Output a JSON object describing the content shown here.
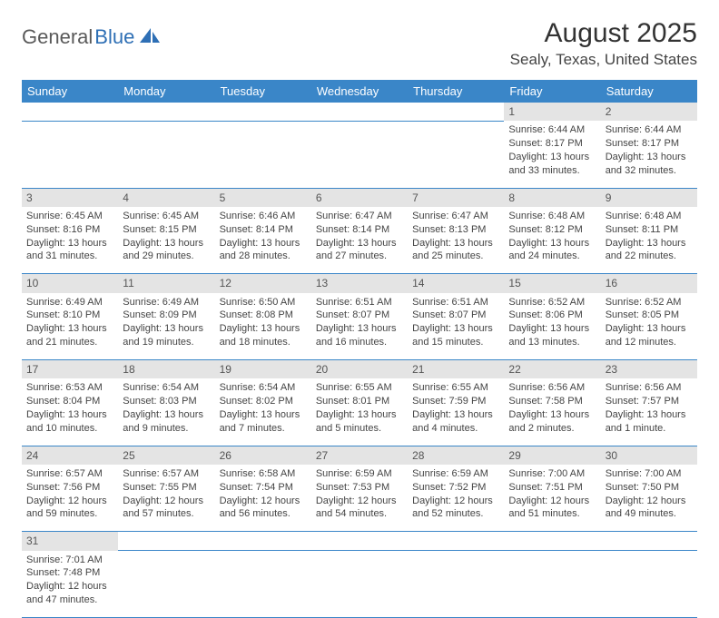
{
  "logo": {
    "part1": "General",
    "part2": "Blue"
  },
  "title": "August 2025",
  "location": "Sealy, Texas, United States",
  "colors": {
    "header_bg": "#3a86c8",
    "header_text": "#ffffff",
    "daynum_bg": "#e4e4e4",
    "row_divider": "#3a86c8",
    "text": "#444444",
    "logo_gray": "#5a5a5a",
    "logo_blue": "#2e6fb5"
  },
  "weekdays": [
    "Sunday",
    "Monday",
    "Tuesday",
    "Wednesday",
    "Thursday",
    "Friday",
    "Saturday"
  ],
  "weeks": [
    {
      "nums": [
        "",
        "",
        "",
        "",
        "",
        "1",
        "2"
      ],
      "cells": [
        null,
        null,
        null,
        null,
        null,
        {
          "sunrise": "Sunrise: 6:44 AM",
          "sunset": "Sunset: 8:17 PM",
          "day1": "Daylight: 13 hours",
          "day2": "and 33 minutes."
        },
        {
          "sunrise": "Sunrise: 6:44 AM",
          "sunset": "Sunset: 8:17 PM",
          "day1": "Daylight: 13 hours",
          "day2": "and 32 minutes."
        }
      ]
    },
    {
      "nums": [
        "3",
        "4",
        "5",
        "6",
        "7",
        "8",
        "9"
      ],
      "cells": [
        {
          "sunrise": "Sunrise: 6:45 AM",
          "sunset": "Sunset: 8:16 PM",
          "day1": "Daylight: 13 hours",
          "day2": "and 31 minutes."
        },
        {
          "sunrise": "Sunrise: 6:45 AM",
          "sunset": "Sunset: 8:15 PM",
          "day1": "Daylight: 13 hours",
          "day2": "and 29 minutes."
        },
        {
          "sunrise": "Sunrise: 6:46 AM",
          "sunset": "Sunset: 8:14 PM",
          "day1": "Daylight: 13 hours",
          "day2": "and 28 minutes."
        },
        {
          "sunrise": "Sunrise: 6:47 AM",
          "sunset": "Sunset: 8:14 PM",
          "day1": "Daylight: 13 hours",
          "day2": "and 27 minutes."
        },
        {
          "sunrise": "Sunrise: 6:47 AM",
          "sunset": "Sunset: 8:13 PM",
          "day1": "Daylight: 13 hours",
          "day2": "and 25 minutes."
        },
        {
          "sunrise": "Sunrise: 6:48 AM",
          "sunset": "Sunset: 8:12 PM",
          "day1": "Daylight: 13 hours",
          "day2": "and 24 minutes."
        },
        {
          "sunrise": "Sunrise: 6:48 AM",
          "sunset": "Sunset: 8:11 PM",
          "day1": "Daylight: 13 hours",
          "day2": "and 22 minutes."
        }
      ]
    },
    {
      "nums": [
        "10",
        "11",
        "12",
        "13",
        "14",
        "15",
        "16"
      ],
      "cells": [
        {
          "sunrise": "Sunrise: 6:49 AM",
          "sunset": "Sunset: 8:10 PM",
          "day1": "Daylight: 13 hours",
          "day2": "and 21 minutes."
        },
        {
          "sunrise": "Sunrise: 6:49 AM",
          "sunset": "Sunset: 8:09 PM",
          "day1": "Daylight: 13 hours",
          "day2": "and 19 minutes."
        },
        {
          "sunrise": "Sunrise: 6:50 AM",
          "sunset": "Sunset: 8:08 PM",
          "day1": "Daylight: 13 hours",
          "day2": "and 18 minutes."
        },
        {
          "sunrise": "Sunrise: 6:51 AM",
          "sunset": "Sunset: 8:07 PM",
          "day1": "Daylight: 13 hours",
          "day2": "and 16 minutes."
        },
        {
          "sunrise": "Sunrise: 6:51 AM",
          "sunset": "Sunset: 8:07 PM",
          "day1": "Daylight: 13 hours",
          "day2": "and 15 minutes."
        },
        {
          "sunrise": "Sunrise: 6:52 AM",
          "sunset": "Sunset: 8:06 PM",
          "day1": "Daylight: 13 hours",
          "day2": "and 13 minutes."
        },
        {
          "sunrise": "Sunrise: 6:52 AM",
          "sunset": "Sunset: 8:05 PM",
          "day1": "Daylight: 13 hours",
          "day2": "and 12 minutes."
        }
      ]
    },
    {
      "nums": [
        "17",
        "18",
        "19",
        "20",
        "21",
        "22",
        "23"
      ],
      "cells": [
        {
          "sunrise": "Sunrise: 6:53 AM",
          "sunset": "Sunset: 8:04 PM",
          "day1": "Daylight: 13 hours",
          "day2": "and 10 minutes."
        },
        {
          "sunrise": "Sunrise: 6:54 AM",
          "sunset": "Sunset: 8:03 PM",
          "day1": "Daylight: 13 hours",
          "day2": "and 9 minutes."
        },
        {
          "sunrise": "Sunrise: 6:54 AM",
          "sunset": "Sunset: 8:02 PM",
          "day1": "Daylight: 13 hours",
          "day2": "and 7 minutes."
        },
        {
          "sunrise": "Sunrise: 6:55 AM",
          "sunset": "Sunset: 8:01 PM",
          "day1": "Daylight: 13 hours",
          "day2": "and 5 minutes."
        },
        {
          "sunrise": "Sunrise: 6:55 AM",
          "sunset": "Sunset: 7:59 PM",
          "day1": "Daylight: 13 hours",
          "day2": "and 4 minutes."
        },
        {
          "sunrise": "Sunrise: 6:56 AM",
          "sunset": "Sunset: 7:58 PM",
          "day1": "Daylight: 13 hours",
          "day2": "and 2 minutes."
        },
        {
          "sunrise": "Sunrise: 6:56 AM",
          "sunset": "Sunset: 7:57 PM",
          "day1": "Daylight: 13 hours",
          "day2": "and 1 minute."
        }
      ]
    },
    {
      "nums": [
        "24",
        "25",
        "26",
        "27",
        "28",
        "29",
        "30"
      ],
      "cells": [
        {
          "sunrise": "Sunrise: 6:57 AM",
          "sunset": "Sunset: 7:56 PM",
          "day1": "Daylight: 12 hours",
          "day2": "and 59 minutes."
        },
        {
          "sunrise": "Sunrise: 6:57 AM",
          "sunset": "Sunset: 7:55 PM",
          "day1": "Daylight: 12 hours",
          "day2": "and 57 minutes."
        },
        {
          "sunrise": "Sunrise: 6:58 AM",
          "sunset": "Sunset: 7:54 PM",
          "day1": "Daylight: 12 hours",
          "day2": "and 56 minutes."
        },
        {
          "sunrise": "Sunrise: 6:59 AM",
          "sunset": "Sunset: 7:53 PM",
          "day1": "Daylight: 12 hours",
          "day2": "and 54 minutes."
        },
        {
          "sunrise": "Sunrise: 6:59 AM",
          "sunset": "Sunset: 7:52 PM",
          "day1": "Daylight: 12 hours",
          "day2": "and 52 minutes."
        },
        {
          "sunrise": "Sunrise: 7:00 AM",
          "sunset": "Sunset: 7:51 PM",
          "day1": "Daylight: 12 hours",
          "day2": "and 51 minutes."
        },
        {
          "sunrise": "Sunrise: 7:00 AM",
          "sunset": "Sunset: 7:50 PM",
          "day1": "Daylight: 12 hours",
          "day2": "and 49 minutes."
        }
      ]
    },
    {
      "nums": [
        "31",
        "",
        "",
        "",
        "",
        "",
        ""
      ],
      "cells": [
        {
          "sunrise": "Sunrise: 7:01 AM",
          "sunset": "Sunset: 7:48 PM",
          "day1": "Daylight: 12 hours",
          "day2": "and 47 minutes."
        },
        null,
        null,
        null,
        null,
        null,
        null
      ]
    }
  ]
}
